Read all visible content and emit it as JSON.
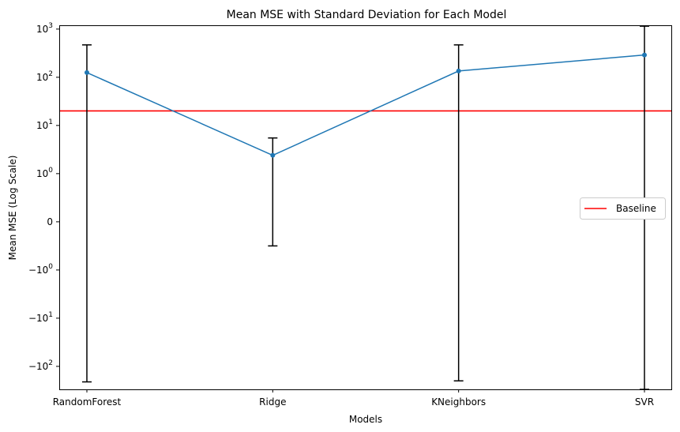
{
  "chart_data": {
    "type": "line",
    "title": "Mean MSE with Standard Deviation for Each Model",
    "xlabel": "Models",
    "ylabel": "Mean MSE (Log Scale)",
    "yscale": "symlog",
    "ylim": [
      -300,
      1200
    ],
    "categories": [
      "RandomForest",
      "Ridge",
      "KNeighbors",
      "SVR"
    ],
    "series": [
      {
        "values": [
          125,
          2.4,
          135,
          290
        ],
        "error_low": [
          -210,
          -0.5,
          -200,
          -360
        ],
        "error_high": [
          470,
          5.5,
          470,
          1150
        ],
        "color": "#1f77b4",
        "marker": "circle"
      }
    ],
    "baseline": {
      "name": "Baseline",
      "value": 20,
      "color": "#ff0000"
    },
    "y_ticks": [
      {
        "value": 1000,
        "base": "10",
        "exp": "3"
      },
      {
        "value": 100,
        "base": "10",
        "exp": "2"
      },
      {
        "value": 10,
        "base": "10",
        "exp": "1"
      },
      {
        "value": 1,
        "base": "10",
        "exp": "0"
      },
      {
        "value": 0,
        "base": "0",
        "exp": ""
      },
      {
        "value": -1,
        "base": "−10",
        "exp": "0"
      },
      {
        "value": -10,
        "base": "−10",
        "exp": "1"
      },
      {
        "value": -100,
        "base": "−10",
        "exp": "2"
      }
    ],
    "legend": {
      "placement": "center-right",
      "entries": [
        "Baseline"
      ]
    },
    "grid": false
  }
}
